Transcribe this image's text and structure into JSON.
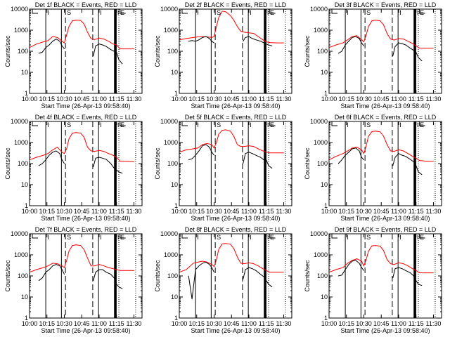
{
  "chart_data": [
    {
      "type": "line",
      "title": "Det 1f BLACK = Events, RED = LLD",
      "xlabel": "Start Time (26-Apr-13 09:58:40)",
      "ylabel": "Counts/sec",
      "red": [
        150,
        220,
        280,
        320,
        500,
        450,
        300,
        250,
        600,
        1500,
        2800,
        3000,
        2900,
        2000,
        800,
        400,
        360,
        420,
        380,
        300,
        220,
        200,
        130,
        130,
        130
      ],
      "black": [
        80,
        90,
        150,
        200,
        300,
        380,
        300,
        180,
        130,
        null,
        60,
        180,
        220,
        200,
        170,
        120,
        100,
        90,
        40,
        25
      ]
    },
    {
      "type": "line",
      "title": "Det 2f BLACK = Events, RED = LLD",
      "xlabel": "Start Time (26-Apr-13 09:58:40)",
      "ylabel": "Counts/sec",
      "red": [
        350,
        400,
        450,
        480,
        500,
        480,
        450,
        500,
        1500,
        4000,
        8000,
        7500,
        5000,
        3000,
        1500,
        900,
        800,
        750,
        700,
        500,
        350,
        280,
        260,
        250,
        250
      ],
      "black": [
        300,
        320,
        300,
        350,
        450,
        500,
        400,
        300,
        250,
        null,
        300,
        450,
        500,
        400,
        350,
        300,
        250,
        220,
        200,
        180
      ]
    },
    {
      "type": "line",
      "title": "Det 3f BLACK = Events, RED = LLD",
      "xlabel": "Start Time (26-Apr-13 09:58:40)",
      "ylabel": "Counts/sec",
      "red": [
        150,
        200,
        250,
        350,
        500,
        550,
        350,
        280,
        600,
        1500,
        2800,
        3000,
        2800,
        1800,
        700,
        380,
        340,
        400,
        380,
        300,
        230,
        180,
        140,
        140,
        140
      ],
      "black": [
        80,
        100,
        200,
        300,
        450,
        500,
        400,
        250,
        180,
        null,
        60,
        170,
        250,
        230,
        200,
        140,
        110,
        90,
        50,
        35
      ]
    },
    {
      "type": "line",
      "title": "Det 4f BLACK = Events, RED = LLD",
      "xlabel": "Start Time (26-Apr-13 09:58:40)",
      "ylabel": "Counts/sec",
      "red": [
        150,
        200,
        250,
        300,
        450,
        600,
        350,
        300,
        500,
        1500,
        2800,
        3000,
        2800,
        1800,
        600,
        400,
        380,
        420,
        380,
        300,
        250,
        200,
        130,
        130,
        120
      ],
      "black": [
        80,
        100,
        150,
        250,
        350,
        400,
        300,
        150,
        100,
        null,
        70,
        180,
        200,
        180,
        160,
        100,
        60,
        50,
        40,
        35
      ]
    },
    {
      "type": "line",
      "title": "Det 5f BLACK = Events, RED = LLD",
      "xlabel": "Start Time (26-Apr-13 09:58:40)",
      "ylabel": "Counts/sec",
      "red": [
        350,
        450,
        500,
        550,
        800,
        900,
        800,
        550,
        1000,
        2500,
        3800,
        4000,
        3500,
        2000,
        800,
        650,
        650,
        700,
        650,
        500,
        400,
        350,
        320,
        320,
        320
      ],
      "black": [
        150,
        170,
        250,
        400,
        700,
        800,
        600,
        350,
        250,
        null,
        100,
        300,
        350,
        300,
        250,
        200,
        150,
        150,
        80,
        60
      ]
    },
    {
      "type": "line",
      "title": "Det 6f BLACK = Events, RED = LLD",
      "xlabel": "Start Time (26-Apr-13 09:58:40)",
      "ylabel": "Counts/sec",
      "red": [
        150,
        220,
        300,
        400,
        550,
        600,
        450,
        300,
        700,
        2000,
        3300,
        3500,
        3200,
        2000,
        800,
        400,
        380,
        450,
        400,
        300,
        220,
        180,
        140,
        130,
        130
      ],
      "black": [
        100,
        150,
        250,
        350,
        500,
        550,
        400,
        200,
        150,
        null,
        80,
        200,
        300,
        250,
        220,
        160,
        120,
        80,
        40,
        30
      ]
    },
    {
      "type": "line",
      "title": "Det 7f BLACK = Events, RED = LLD",
      "xlabel": "Start Time (26-Apr-13 09:58:40)",
      "ylabel": "Counts/sec",
      "red": [
        150,
        200,
        250,
        300,
        400,
        380,
        300,
        250,
        550,
        1500,
        2800,
        3000,
        2800,
        1800,
        700,
        300,
        300,
        350,
        300,
        250,
        220,
        200,
        180,
        180,
        180
      ],
      "black": [
        60,
        80,
        150,
        200,
        300,
        350,
        300,
        200,
        120,
        null,
        60,
        150,
        200,
        200,
        150,
        120,
        80,
        40,
        30,
        25
      ]
    },
    {
      "type": "line",
      "title": "Det 8f BLACK = Events, RED = LLD",
      "xlabel": "Start Time (26-Apr-13 09:58:40)",
      "ylabel": "Counts/sec",
      "red": [
        150,
        200,
        400,
        450,
        500,
        450,
        350,
        280,
        600,
        1800,
        3300,
        3500,
        3200,
        2000,
        800,
        400,
        380,
        420,
        380,
        300,
        220,
        180,
        150,
        150,
        150
      ],
      "black": [
        100,
        8,
        200,
        300,
        400,
        450,
        350,
        250,
        150,
        null,
        70,
        200,
        250,
        220,
        180,
        120,
        90,
        60,
        40,
        30
      ]
    },
    {
      "type": "line",
      "title": "Det 9f BLACK = Events, RED = LLD",
      "xlabel": "Start Time (26-Apr-13 09:58:40)",
      "ylabel": "Counts/sec",
      "red": [
        150,
        200,
        250,
        400,
        550,
        650,
        500,
        300,
        600,
        1500,
        2700,
        2800,
        2600,
        1600,
        600,
        380,
        350,
        420,
        380,
        300,
        220,
        180,
        140,
        140,
        140
      ],
      "black": [
        100,
        110,
        200,
        350,
        500,
        550,
        400,
        250,
        180,
        null,
        80,
        220,
        250,
        220,
        180,
        140,
        100,
        60,
        40,
        35
      ]
    }
  ],
  "shared": {
    "red_times_min": [
      0,
      6,
      12,
      16,
      20,
      24,
      28,
      30,
      32,
      34,
      37,
      40,
      44,
      47,
      50,
      53,
      56,
      60,
      64,
      68,
      72,
      75,
      78,
      84,
      90
    ],
    "black_times_min": [
      8,
      11,
      14,
      17,
      20,
      23,
      26,
      28,
      30,
      31,
      55,
      57,
      60,
      63,
      66,
      70,
      73,
      75,
      77,
      80
    ],
    "xlim_min": [
      0,
      97
    ],
    "ylim": [
      1,
      10000
    ],
    "yscale": "log",
    "x_ticks": [
      "10:00",
      "10:15",
      "10:30",
      "10:45",
      "11:00",
      "11:15",
      "11:30"
    ],
    "x_tick_min": [
      0,
      15,
      30,
      45,
      60,
      75,
      90
    ],
    "y_ticks": [
      "1",
      "10",
      "100",
      "1000",
      "10000"
    ],
    "y_tick_vals": [
      1,
      10,
      100,
      1000,
      10000
    ],
    "markers": [
      {
        "min": 14,
        "style": "solid",
        "label": "I"
      },
      {
        "min": 27.5,
        "style": "solid",
        "label": ""
      },
      {
        "min": 31,
        "style": "dashed",
        "label": "S"
      },
      {
        "min": 54.5,
        "style": "dashed",
        "label": ""
      },
      {
        "min": 59.5,
        "style": "solid",
        "label": "I"
      },
      {
        "min": 73.5,
        "style": "thick",
        "label": ""
      },
      {
        "min": 74.5,
        "style": "thick",
        "label": "I"
      },
      {
        "min": 77,
        "style": "dotted",
        "label": "E"
      },
      {
        "min": 91.5,
        "style": "dotted",
        "label": ""
      }
    ],
    "series_colors": {
      "events": "#000000",
      "lld": "#ff0000"
    }
  }
}
